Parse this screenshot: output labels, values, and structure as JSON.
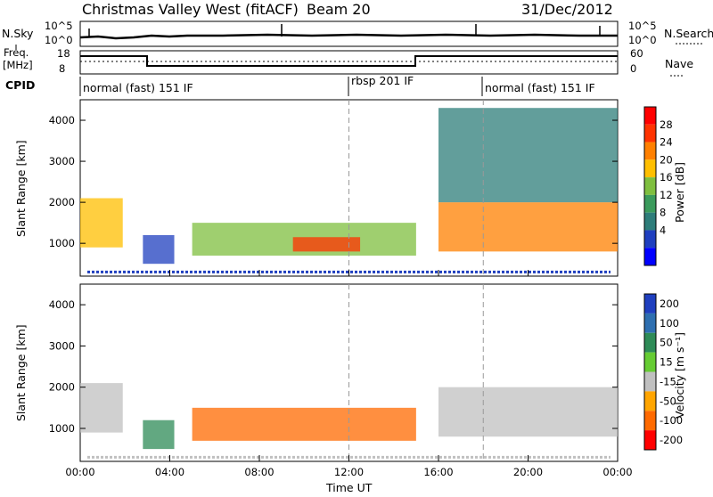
{
  "header": {
    "station": "Christmas Valley West (fitACF)",
    "beam": "Beam 20",
    "date": "31/Dec/2012"
  },
  "top_panel": {
    "nsky_label": "N.Sky",
    "nsearch_label": "N.Search",
    "freq_label": "Freq.",
    "freq_unit": "[MHz]",
    "nave_label": "Nave",
    "cpid_label": "CPID",
    "nsky_ticks": [
      "10^5",
      "10^0"
    ],
    "nsearch_ticks": [
      "10^5",
      "10^0"
    ],
    "freq_ticks": [
      "18",
      "8"
    ],
    "nave_ticks": [
      "60",
      "0"
    ],
    "cpid_segments": [
      {
        "label": "normal (fast) 151 IF",
        "start_hour": 0
      },
      {
        "label": "rbsp 201 IF",
        "start_hour": 12
      },
      {
        "label": "normal (fast) 151 IF",
        "start_hour": 18
      }
    ]
  },
  "colorbars": {
    "power": {
      "label": "Power [dB]",
      "ticks": [
        "28",
        "24",
        "20",
        "16",
        "12",
        "8",
        "4"
      ]
    },
    "velocity": {
      "label": "Velocity [m s⁻¹]",
      "ticks": [
        "200",
        "100",
        "50",
        "15",
        "-15",
        "-50",
        "-100",
        "-200"
      ]
    }
  },
  "chart_data": [
    {
      "type": "heatmap",
      "title": "Power",
      "xlabel": "",
      "ylabel": "Slant Range [km]",
      "xlim": [
        0,
        24
      ],
      "ylim": [
        200,
        4500
      ],
      "yticks": [
        "1000",
        "2000",
        "3000",
        "4000"
      ],
      "xticks": [
        "00:00",
        "04:00",
        "08:00",
        "12:00",
        "16:00",
        "20:00",
        "00:00"
      ],
      "colorbar": {
        "label": "Power [dB]",
        "range": [
          0,
          30
        ],
        "ticks": [
          4,
          8,
          12,
          16,
          20,
          24,
          28
        ]
      },
      "regions": [
        {
          "t": [
            0.0,
            1.9
          ],
          "r": [
            900,
            2100
          ],
          "value": 22
        },
        {
          "t": [
            2.8,
            4.2
          ],
          "r": [
            500,
            1200
          ],
          "value": 6
        },
        {
          "t": [
            5.0,
            15.0
          ],
          "r": [
            700,
            1500
          ],
          "value": 18
        },
        {
          "t": [
            9.5,
            12.5
          ],
          "r": [
            800,
            1150
          ],
          "value": 28
        },
        {
          "t": [
            16.0,
            24.0
          ],
          "r": [
            800,
            2000
          ],
          "value": 26
        },
        {
          "t": [
            16.0,
            24.0
          ],
          "r": [
            2000,
            4300
          ],
          "value": 10
        }
      ]
    },
    {
      "type": "heatmap",
      "title": "Velocity",
      "xlabel": "Time UT",
      "ylabel": "Slant Range [km]",
      "xlim": [
        0,
        24
      ],
      "ylim": [
        200,
        4500
      ],
      "yticks": [
        "1000",
        "2000",
        "3000",
        "4000"
      ],
      "xticks": [
        "00:00",
        "04:00",
        "08:00",
        "12:00",
        "16:00",
        "20:00",
        "00:00"
      ],
      "colorbar": {
        "label": "Velocity [m s⁻¹]",
        "range": [
          -200,
          200
        ],
        "ticks": [
          200,
          100,
          50,
          15,
          -15,
          -50,
          -100,
          -200
        ]
      },
      "regions": [
        {
          "t": [
            0.0,
            1.9
          ],
          "r": [
            900,
            2100
          ],
          "value": 0
        },
        {
          "t": [
            2.8,
            4.2
          ],
          "r": [
            500,
            1200
          ],
          "value": 60
        },
        {
          "t": [
            5.0,
            15.0
          ],
          "r": [
            700,
            1500
          ],
          "value": -60
        },
        {
          "t": [
            16.0,
            24.0
          ],
          "r": [
            800,
            2000
          ],
          "value": 0
        }
      ]
    }
  ]
}
